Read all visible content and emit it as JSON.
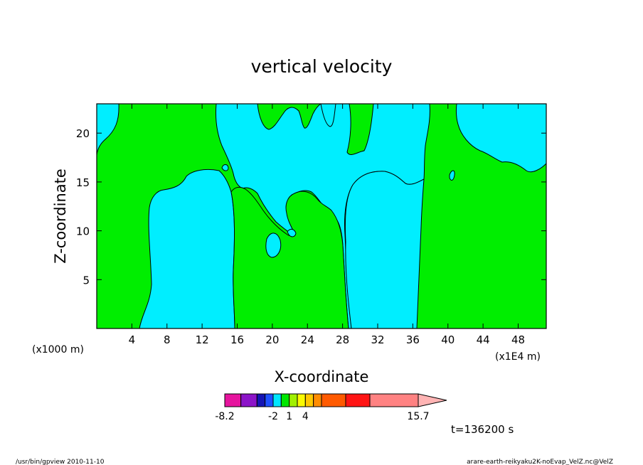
{
  "chart_data": {
    "type": "heatmap",
    "title": "vertical velocity",
    "xlabel": "X-coordinate",
    "ylabel": "Z-coordinate",
    "x_unit_left": "(x1000 m)",
    "x_unit_right": "(x1E4 m)",
    "xlim": [
      0,
      51.2
    ],
    "ylim": [
      0,
      23
    ],
    "x_ticks": [
      4,
      8,
      12,
      16,
      20,
      24,
      28,
      32,
      36,
      40,
      44,
      48
    ],
    "y_ticks": [
      5,
      10,
      15,
      20
    ],
    "time_label": "t=136200 s",
    "colorbar": {
      "labels": [
        {
          "text": "-8.2",
          "index": 0
        },
        {
          "text": "-2",
          "index": 4
        },
        {
          "text": "1",
          "index": 6
        },
        {
          "text": "4",
          "index": 8
        },
        {
          "text": "15.7",
          "index": 13
        }
      ],
      "colors": [
        "#e6149e",
        "#8c14c8",
        "#1414b4",
        "#1e50ff",
        "#00e6ff",
        "#00e600",
        "#a0f000",
        "#fafa00",
        "#ffc800",
        "#ff8c00",
        "#ff5a00",
        "#ff1414",
        "#ff8282"
      ],
      "widths": [
        1,
        1,
        0.5,
        0.5,
        0.5,
        0.5,
        0.5,
        0.5,
        0.5,
        0.5,
        1.5,
        1.5,
        3.0
      ],
      "extend_color": "#ffb4b4"
    },
    "field_colors": {
      "negative": "#00eeff",
      "positive": "#00ee00"
    }
  },
  "footer": {
    "left": "/usr/bin/gpview   2010-11-10",
    "right": "arare-earth-reikyaku2K-noEvap_VelZ.nc@VelZ"
  }
}
